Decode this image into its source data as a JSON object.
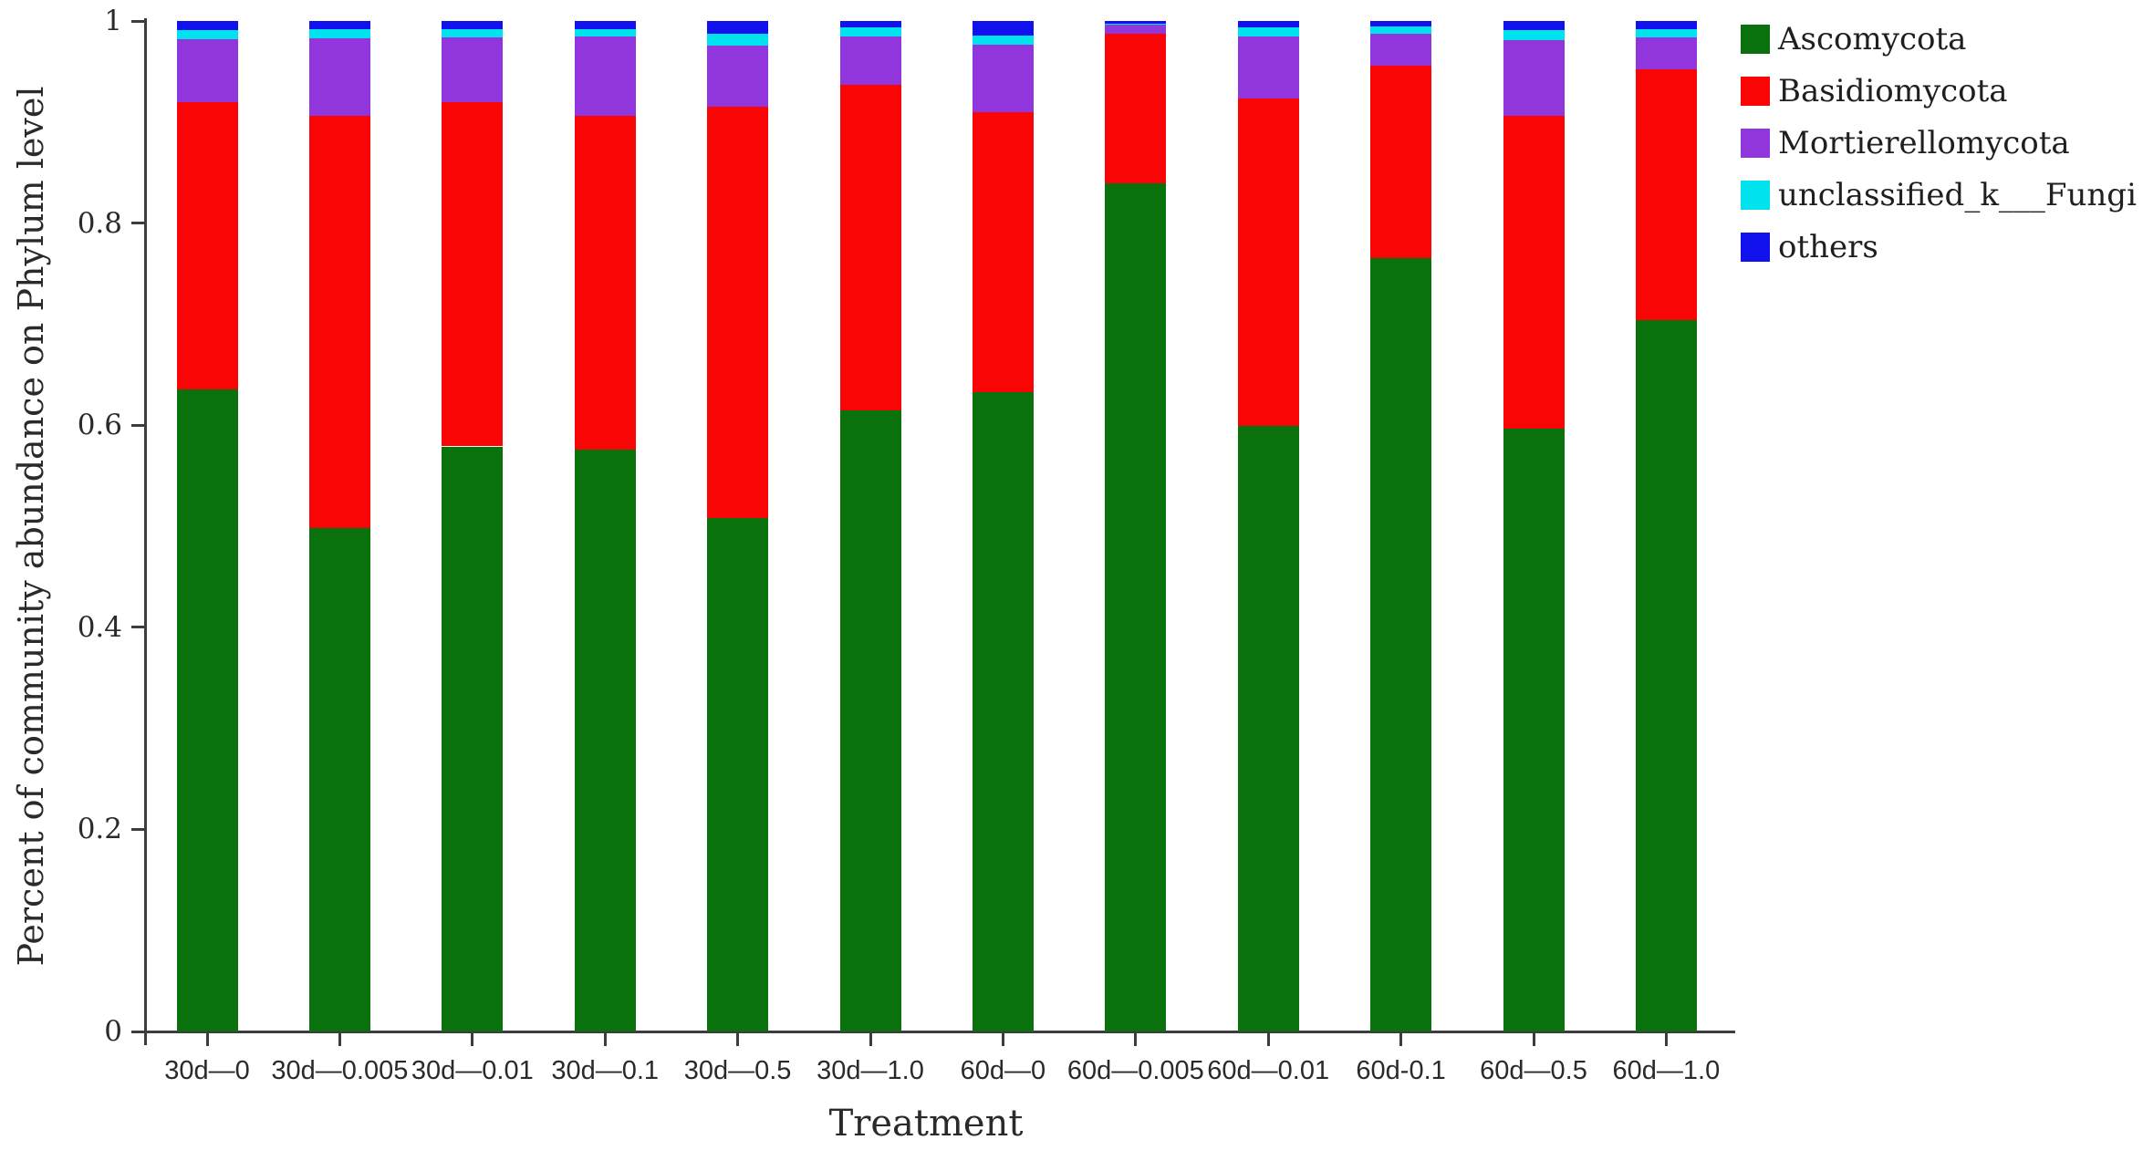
{
  "chart_data": {
    "type": "bar",
    "stacked": true,
    "title": "",
    "xlabel": "Treatment",
    "ylabel": "Percent of community abundance on Phylum level",
    "ylim": [
      0,
      1
    ],
    "grid": false,
    "legend_position": "top-right",
    "ytick_labels": [
      "0",
      "0.2",
      "0.4",
      "0.6",
      "0.8",
      "1"
    ],
    "ytick_values": [
      0,
      0.2,
      0.4,
      0.6,
      0.8,
      1
    ],
    "categories": [
      "30d—0",
      "30d—0.005",
      "30d—0.01",
      "30d—0.1",
      "30d—0.5",
      "30d—1.0",
      "60d—0",
      "60d—0.005",
      "60d—0.01",
      "60d-0.1",
      "60d—0.5",
      "60d—1.0"
    ],
    "series": [
      {
        "name": "Ascomycota",
        "color": "#0A720C",
        "values": [
          0.635,
          0.498,
          0.579,
          0.576,
          0.508,
          0.615,
          0.633,
          0.839,
          0.599,
          0.765,
          0.597,
          0.704
        ]
      },
      {
        "name": "Basidiomycota",
        "color": "#F90505",
        "values": [
          0.285,
          0.408,
          0.341,
          0.33,
          0.407,
          0.322,
          0.277,
          0.148,
          0.324,
          0.191,
          0.309,
          0.248
        ]
      },
      {
        "name": "Mortierellomycota",
        "color": "#9036DC",
        "values": [
          0.062,
          0.077,
          0.064,
          0.079,
          0.061,
          0.048,
          0.067,
          0.009,
          0.062,
          0.031,
          0.075,
          0.032
        ]
      },
      {
        "name": "unclassified_k___Fungi",
        "color": "#00E3EE",
        "values": [
          0.009,
          0.009,
          0.008,
          0.007,
          0.011,
          0.009,
          0.009,
          0.001,
          0.009,
          0.008,
          0.01,
          0.008
        ]
      },
      {
        "name": "others",
        "color": "#1111EE",
        "values": [
          0.009,
          0.008,
          0.008,
          0.008,
          0.013,
          0.006,
          0.014,
          0.003,
          0.006,
          0.005,
          0.009,
          0.008
        ]
      }
    ]
  }
}
